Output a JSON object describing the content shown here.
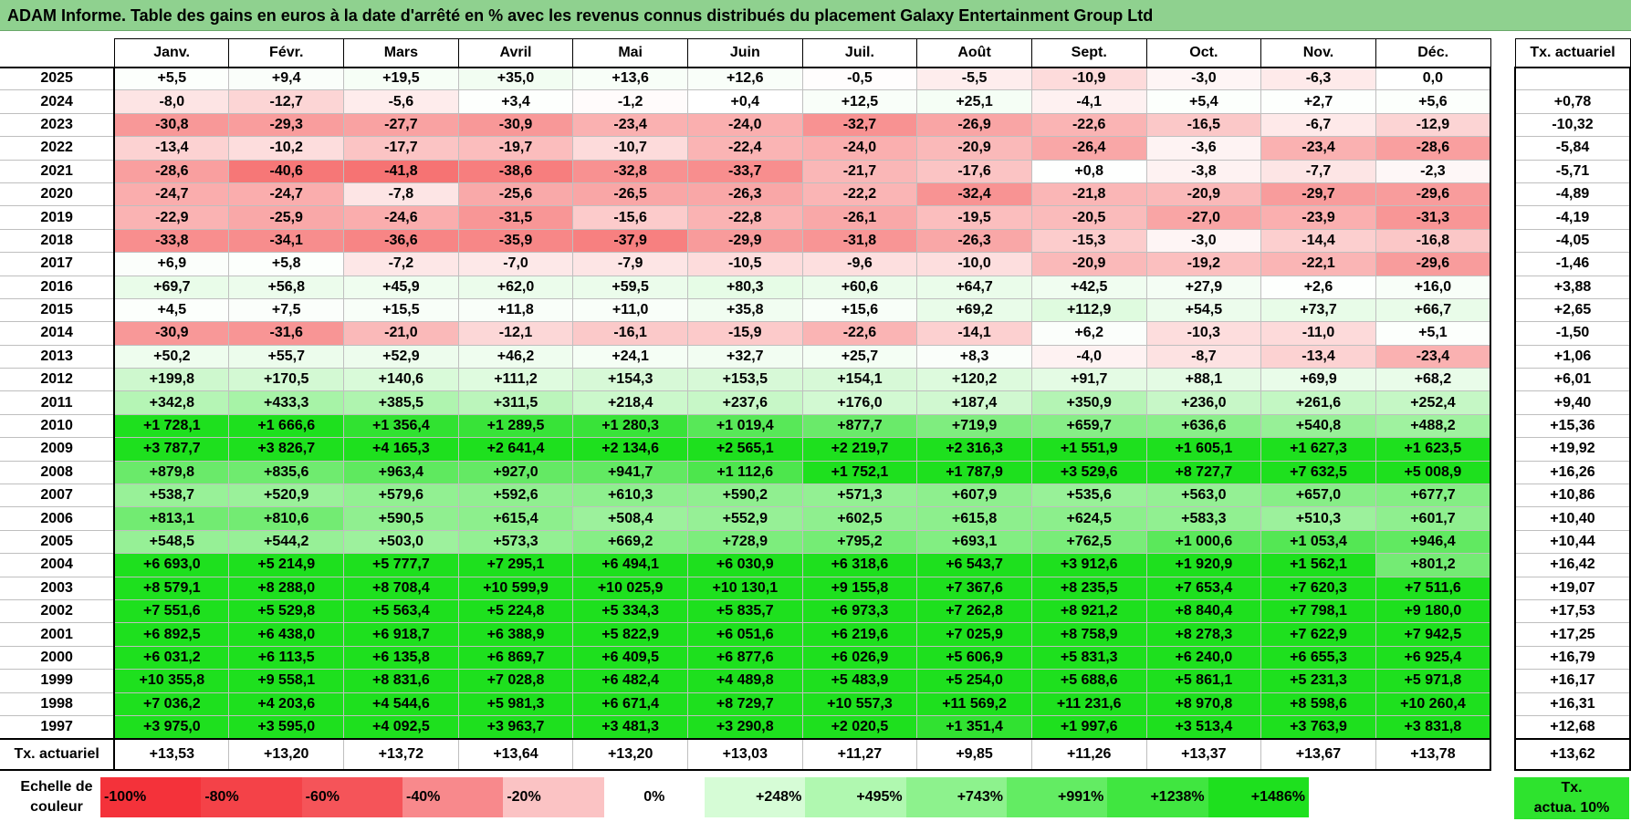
{
  "title": "ADAM Informe. Table des gains en euros à la date d'arrêté en % avec les revenus connus distribués du placement Galaxy Entertainment Group Ltd",
  "months": [
    "Janv.",
    "Févr.",
    "Mars",
    "Avril",
    "Mai",
    "Juin",
    "Juil.",
    "Août",
    "Sept.",
    "Oct.",
    "Nov.",
    "Déc."
  ],
  "side_header": "Tx. actuariel",
  "rows": [
    {
      "year": "2025",
      "values": [
        "+5,5",
        "+9,4",
        "+19,5",
        "+35,0",
        "+13,6",
        "+12,6",
        "-0,5",
        "-5,5",
        "-10,9",
        "-3,0",
        "-6,3",
        "0,0"
      ],
      "tx": ""
    },
    {
      "year": "2024",
      "values": [
        "-8,0",
        "-12,7",
        "-5,6",
        "+3,4",
        "-1,2",
        "+0,4",
        "+12,5",
        "+25,1",
        "-4,1",
        "+5,4",
        "+2,7",
        "+5,6"
      ],
      "tx": "+0,78"
    },
    {
      "year": "2023",
      "values": [
        "-30,8",
        "-29,3",
        "-27,7",
        "-30,9",
        "-23,4",
        "-24,0",
        "-32,7",
        "-26,9",
        "-22,6",
        "-16,5",
        "-6,7",
        "-12,9"
      ],
      "tx": "-10,32"
    },
    {
      "year": "2022",
      "values": [
        "-13,4",
        "-10,2",
        "-17,7",
        "-19,7",
        "-10,7",
        "-22,4",
        "-24,0",
        "-20,9",
        "-26,4",
        "-3,6",
        "-23,4",
        "-28,6"
      ],
      "tx": "-5,84"
    },
    {
      "year": "2021",
      "values": [
        "-28,6",
        "-40,6",
        "-41,8",
        "-38,6",
        "-32,8",
        "-33,7",
        "-21,7",
        "-17,6",
        "+0,8",
        "-3,8",
        "-7,7",
        "-2,3"
      ],
      "tx": "-5,71"
    },
    {
      "year": "2020",
      "values": [
        "-24,7",
        "-24,7",
        "-7,8",
        "-25,6",
        "-26,5",
        "-26,3",
        "-22,2",
        "-32,4",
        "-21,8",
        "-20,9",
        "-29,7",
        "-29,6"
      ],
      "tx": "-4,89"
    },
    {
      "year": "2019",
      "values": [
        "-22,9",
        "-25,9",
        "-24,6",
        "-31,5",
        "-15,6",
        "-22,8",
        "-26,1",
        "-19,5",
        "-20,5",
        "-27,0",
        "-23,9",
        "-31,3"
      ],
      "tx": "-4,19"
    },
    {
      "year": "2018",
      "values": [
        "-33,8",
        "-34,1",
        "-36,6",
        "-35,9",
        "-37,9",
        "-29,9",
        "-31,8",
        "-26,3",
        "-15,3",
        "-3,0",
        "-14,4",
        "-16,8"
      ],
      "tx": "-4,05"
    },
    {
      "year": "2017",
      "values": [
        "+6,9",
        "+5,8",
        "-7,2",
        "-7,0",
        "-7,9",
        "-10,5",
        "-9,6",
        "-10,0",
        "-20,9",
        "-19,2",
        "-22,1",
        "-29,6"
      ],
      "tx": "-1,46"
    },
    {
      "year": "2016",
      "values": [
        "+69,7",
        "+56,8",
        "+45,9",
        "+62,0",
        "+59,5",
        "+80,3",
        "+60,6",
        "+64,7",
        "+42,5",
        "+27,9",
        "+2,6",
        "+16,0"
      ],
      "tx": "+3,88"
    },
    {
      "year": "2015",
      "values": [
        "+4,5",
        "+7,5",
        "+15,5",
        "+11,8",
        "+11,0",
        "+35,8",
        "+15,6",
        "+69,2",
        "+112,9",
        "+54,5",
        "+73,7",
        "+66,7"
      ],
      "tx": "+2,65"
    },
    {
      "year": "2014",
      "values": [
        "-30,9",
        "-31,6",
        "-21,0",
        "-12,1",
        "-16,1",
        "-15,9",
        "-22,6",
        "-14,1",
        "+6,2",
        "-10,3",
        "-11,0",
        "+5,1"
      ],
      "tx": "-1,50"
    },
    {
      "year": "2013",
      "values": [
        "+50,2",
        "+55,7",
        "+52,9",
        "+46,2",
        "+24,1",
        "+32,7",
        "+25,7",
        "+8,3",
        "-4,0",
        "-8,7",
        "-13,4",
        "-23,4"
      ],
      "tx": "+1,06"
    },
    {
      "year": "2012",
      "values": [
        "+199,8",
        "+170,5",
        "+140,6",
        "+111,2",
        "+154,3",
        "+153,5",
        "+154,1",
        "+120,2",
        "+91,7",
        "+88,1",
        "+69,9",
        "+68,2"
      ],
      "tx": "+6,01"
    },
    {
      "year": "2011",
      "values": [
        "+342,8",
        "+433,3",
        "+385,5",
        "+311,5",
        "+218,4",
        "+237,6",
        "+176,0",
        "+187,4",
        "+350,9",
        "+236,0",
        "+261,6",
        "+252,4"
      ],
      "tx": "+9,40"
    },
    {
      "year": "2010",
      "values": [
        "+1 728,1",
        "+1 666,6",
        "+1 356,4",
        "+1 289,5",
        "+1 280,3",
        "+1 019,4",
        "+877,7",
        "+719,9",
        "+659,7",
        "+636,6",
        "+540,8",
        "+488,2"
      ],
      "tx": "+15,36"
    },
    {
      "year": "2009",
      "values": [
        "+3 787,7",
        "+3 826,7",
        "+4 165,3",
        "+2 641,4",
        "+2 134,6",
        "+2 565,1",
        "+2 219,7",
        "+2 316,3",
        "+1 551,9",
        "+1 605,1",
        "+1 627,3",
        "+1 623,5"
      ],
      "tx": "+19,92"
    },
    {
      "year": "2008",
      "values": [
        "+879,8",
        "+835,6",
        "+963,4",
        "+927,0",
        "+941,7",
        "+1 112,6",
        "+1 752,1",
        "+1 787,9",
        "+3 529,6",
        "+8 727,7",
        "+7 632,5",
        "+5 008,9"
      ],
      "tx": "+16,26"
    },
    {
      "year": "2007",
      "values": [
        "+538,7",
        "+520,9",
        "+579,6",
        "+592,6",
        "+610,3",
        "+590,2",
        "+571,3",
        "+607,9",
        "+535,6",
        "+563,0",
        "+657,0",
        "+677,7"
      ],
      "tx": "+10,86"
    },
    {
      "year": "2006",
      "values": [
        "+813,1",
        "+810,6",
        "+590,5",
        "+615,4",
        "+508,4",
        "+552,9",
        "+602,5",
        "+615,8",
        "+624,5",
        "+583,3",
        "+510,3",
        "+601,7"
      ],
      "tx": "+10,40"
    },
    {
      "year": "2005",
      "values": [
        "+548,5",
        "+544,2",
        "+503,0",
        "+573,3",
        "+669,2",
        "+728,9",
        "+795,2",
        "+693,1",
        "+762,5",
        "+1 000,6",
        "+1 053,4",
        "+946,4"
      ],
      "tx": "+10,44"
    },
    {
      "year": "2004",
      "values": [
        "+6 693,0",
        "+5 214,9",
        "+5 777,7",
        "+7 295,1",
        "+6 494,1",
        "+6 030,9",
        "+6 318,6",
        "+6 543,7",
        "+3 912,6",
        "+1 920,9",
        "+1 562,1",
        "+801,2"
      ],
      "tx": "+16,42"
    },
    {
      "year": "2003",
      "values": [
        "+8 579,1",
        "+8 288,0",
        "+8 708,4",
        "+10 599,9",
        "+10 025,9",
        "+10 130,1",
        "+9 155,8",
        "+7 367,6",
        "+8 235,5",
        "+7 653,4",
        "+7 620,3",
        "+7 511,6"
      ],
      "tx": "+19,07"
    },
    {
      "year": "2002",
      "values": [
        "+7 551,6",
        "+5 529,8",
        "+5 563,4",
        "+5 224,8",
        "+5 334,3",
        "+5 835,7",
        "+6 973,3",
        "+7 262,8",
        "+8 921,2",
        "+8 840,4",
        "+7 798,1",
        "+9 180,0"
      ],
      "tx": "+17,53"
    },
    {
      "year": "2001",
      "values": [
        "+6 892,5",
        "+6 438,0",
        "+6 918,7",
        "+6 388,9",
        "+5 822,9",
        "+6 051,6",
        "+6 219,6",
        "+7 025,9",
        "+8 758,9",
        "+8 278,3",
        "+7 622,9",
        "+7 942,5"
      ],
      "tx": "+17,25"
    },
    {
      "year": "2000",
      "values": [
        "+6 031,2",
        "+6 113,5",
        "+6 135,8",
        "+6 869,7",
        "+6 409,5",
        "+6 877,6",
        "+6 026,9",
        "+5 606,9",
        "+5 831,3",
        "+6 240,0",
        "+6 655,3",
        "+6 925,4"
      ],
      "tx": "+16,79"
    },
    {
      "year": "1999",
      "values": [
        "+10 355,8",
        "+9 558,1",
        "+8 831,6",
        "+7 028,8",
        "+6 482,4",
        "+4 489,8",
        "+5 483,9",
        "+5 254,0",
        "+5 688,6",
        "+5 861,1",
        "+5 231,3",
        "+5 971,8"
      ],
      "tx": "+16,17"
    },
    {
      "year": "1998",
      "values": [
        "+7 036,2",
        "+4 203,6",
        "+4 544,6",
        "+5 981,3",
        "+6 671,4",
        "+8 729,7",
        "+10 557,3",
        "+11 569,2",
        "+11 231,6",
        "+8 970,8",
        "+8 598,6",
        "+10 260,4"
      ],
      "tx": "+16,31"
    },
    {
      "year": "1997",
      "values": [
        "+3 975,0",
        "+3 595,0",
        "+4 092,5",
        "+3 963,7",
        "+3 481,3",
        "+3 290,8",
        "+2 020,5",
        "+1 351,4",
        "+1 997,6",
        "+3 513,4",
        "+3 763,9",
        "+3 831,8"
      ],
      "tx": "+12,68"
    }
  ],
  "footer": {
    "label": "Tx. actuariel",
    "values": [
      "+13,53",
      "+13,20",
      "+13,72",
      "+13,64",
      "+13,20",
      "+13,03",
      "+11,27",
      "+9,85",
      "+11,26",
      "+13,37",
      "+13,67",
      "+13,78"
    ],
    "tx": "+13,62"
  },
  "legend": {
    "label_line1": "Echelle de",
    "label_line2": "couleur",
    "items": [
      {
        "text": "-100%",
        "color": "#f4323a"
      },
      {
        "text": "-80%",
        "color": "#f44248"
      },
      {
        "text": "-60%",
        "color": "#f55459"
      },
      {
        "text": "-40%",
        "color": "#f8898c"
      },
      {
        "text": "-20%",
        "color": "#fbc3c4"
      },
      {
        "text": "0%",
        "color": "#ffffff"
      },
      {
        "text": "+248%",
        "color": "#d6fcd6"
      },
      {
        "text": "+495%",
        "color": "#b0f8b0"
      },
      {
        "text": "+743%",
        "color": "#8df28d"
      },
      {
        "text": "+991%",
        "color": "#63ec63"
      },
      {
        "text": "+1238%",
        "color": "#40e640"
      },
      {
        "text": "+1486%",
        "color": "#1ee01e"
      }
    ],
    "tx_line1": "Tx.",
    "tx_line2": "actua. 10%"
  }
}
